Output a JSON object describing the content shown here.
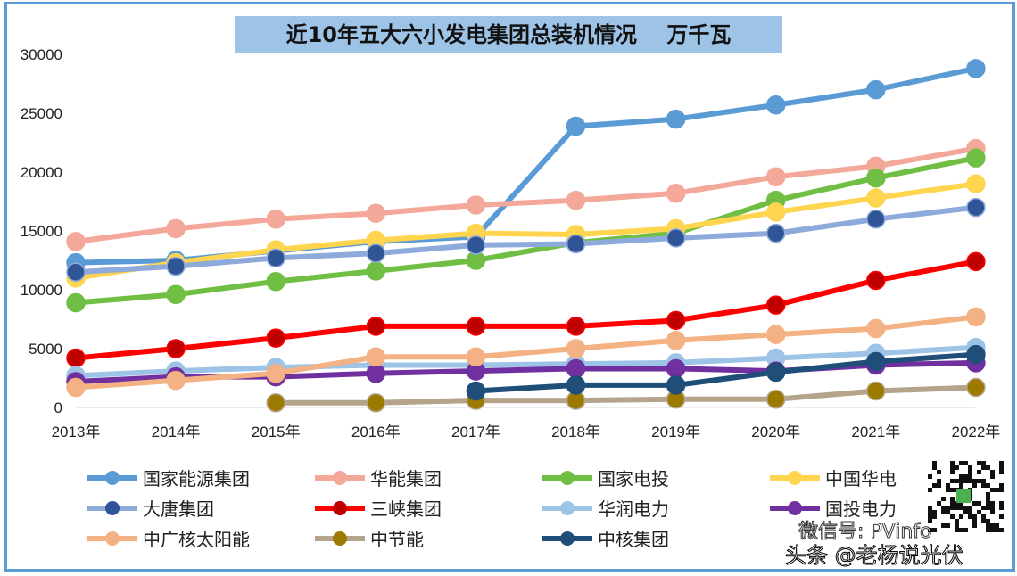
{
  "chart_data": {
    "type": "line",
    "title": "近10年五大六小发电集团总装机情况    万千瓦",
    "categories": [
      "2013年",
      "2014年",
      "2015年",
      "2016年",
      "2017年",
      "2018年",
      "2019年",
      "2020年",
      "2021年",
      "2022年"
    ],
    "ylim": [
      0,
      30000
    ],
    "yticks": [
      0,
      5000,
      10000,
      15000,
      20000,
      25000,
      30000
    ],
    "grid": false,
    "legend_position": "bottom",
    "series": [
      {
        "name": "国家能源集团",
        "color": "#5b9bd5",
        "values": [
          12300,
          12500,
          13300,
          14100,
          14500,
          23900,
          24500,
          25700,
          27000,
          28800
        ]
      },
      {
        "name": "华能集团",
        "color": "#f4a89a",
        "values": [
          14100,
          15200,
          16000,
          16500,
          17200,
          17600,
          18200,
          19600,
          20500,
          22000
        ]
      },
      {
        "name": "国家电投",
        "color": "#70bf44",
        "values": [
          8900,
          9600,
          10700,
          11600,
          12500,
          14000,
          14800,
          17600,
          19500,
          21200
        ]
      },
      {
        "name": "中国华电",
        "color": "#ffd54f",
        "values": [
          11000,
          12300,
          13400,
          14200,
          14800,
          14700,
          15200,
          16600,
          17800,
          19000
        ]
      },
      {
        "name": "大唐集团",
        "color": "#8eaadb",
        "marker": "#2f5597",
        "values": [
          11500,
          12000,
          12700,
          13100,
          13800,
          13900,
          14400,
          14800,
          16000,
          17000
        ]
      },
      {
        "name": "三峡集团",
        "color": "#ff0000",
        "marker": "#c00000",
        "values": [
          4200,
          5000,
          5900,
          6900,
          6900,
          6900,
          7400,
          8700,
          10800,
          12400
        ]
      },
      {
        "name": "华润电力",
        "color": "#9dc3e6",
        "values": [
          2700,
          3100,
          3400,
          3600,
          3600,
          3700,
          3800,
          4200,
          4600,
          5100
        ]
      },
      {
        "name": "国投电力",
        "color": "#7030a0",
        "values": [
          2200,
          2600,
          2600,
          2900,
          3100,
          3300,
          3300,
          3100,
          3600,
          3800
        ]
      },
      {
        "name": "中广核太阳能",
        "color": "#f4b183",
        "values": [
          1700,
          2300,
          2900,
          4300,
          4300,
          5000,
          5700,
          6200,
          6700,
          7700
        ]
      },
      {
        "name": "中节能",
        "color": "#b4a48c",
        "marker": "#9c7a00",
        "values": [
          null,
          null,
          400,
          400,
          600,
          600,
          700,
          700,
          1400,
          1700
        ]
      },
      {
        "name": "中核集团",
        "color": "#1f4e79",
        "marker": "#1f4e79",
        "values": [
          null,
          null,
          null,
          null,
          1400,
          1900,
          1900,
          3000,
          3900,
          4500
        ]
      }
    ]
  },
  "watermark": {
    "line1": "微信号: PVinfo",
    "line2": "头条 @老杨说光伏"
  }
}
